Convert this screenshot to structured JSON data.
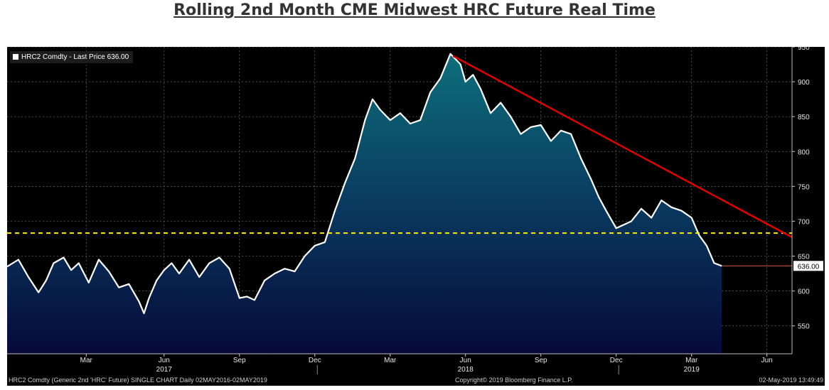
{
  "title": "Rolling 2nd Month CME Midwest HRC Future Real Time",
  "chart_data": {
    "type": "area",
    "title": "Rolling 2nd Month CME Midwest HRC Future Real Time",
    "legend": "HRC2 Comdty - Last Price 636.00",
    "legend_position": "top-left",
    "ylim": [
      510,
      950
    ],
    "y_ticks": [
      550,
      600,
      650,
      700,
      750,
      800,
      850,
      900,
      950
    ],
    "last_value_label": "636.00",
    "last_value": 636,
    "month_ticks": [
      {
        "label": "Mar",
        "t": 2.9
      },
      {
        "label": "Jun",
        "t": 6.0
      },
      {
        "label": "Sep",
        "t": 9.0
      },
      {
        "label": "Dec",
        "t": 12.0
      },
      {
        "label": "Mar",
        "t": 15.0
      },
      {
        "label": "Jun",
        "t": 18.0
      },
      {
        "label": "Sep",
        "t": 21.0
      },
      {
        "label": "Dec",
        "t": 24.0
      },
      {
        "label": "Mar",
        "t": 27.0
      },
      {
        "label": "Jun",
        "t": 30.0
      }
    ],
    "year_labels": [
      {
        "label": "2017",
        "t": 6.0
      },
      {
        "label": "2018",
        "t": 18.0
      },
      {
        "label": "2019",
        "t": 27.0
      }
    ],
    "year_separators": [
      12.1,
      24.1
    ],
    "x_range": [
      -0.25,
      31.0
    ],
    "series": [
      {
        "name": "HRC2 Comdty - Last Price",
        "t": [
          -0.25,
          0.2,
          0.6,
          1.0,
          1.3,
          1.6,
          2.0,
          2.3,
          2.6,
          3.0,
          3.4,
          3.8,
          4.2,
          4.6,
          5.0,
          5.2,
          5.4,
          5.7,
          6.0,
          6.3,
          6.6,
          7.0,
          7.4,
          7.8,
          8.2,
          8.6,
          9.0,
          9.3,
          9.6,
          10.0,
          10.4,
          10.8,
          11.2,
          11.6,
          12.0,
          12.4,
          12.8,
          13.2,
          13.6,
          14.0,
          14.3,
          14.6,
          15.0,
          15.4,
          15.8,
          16.2,
          16.6,
          17.0,
          17.4,
          17.8,
          18.0,
          18.3,
          18.6,
          19.0,
          19.4,
          19.8,
          20.2,
          20.6,
          21.0,
          21.4,
          21.8,
          22.2,
          22.6,
          23.0,
          23.3,
          23.6,
          24.0,
          24.3,
          24.6,
          25.0,
          25.4,
          25.8,
          26.2,
          26.6,
          27.0,
          27.3,
          27.6,
          27.9,
          28.2
        ],
        "values": [
          635,
          645,
          620,
          598,
          615,
          640,
          648,
          630,
          640,
          612,
          645,
          628,
          605,
          610,
          585,
          568,
          590,
          615,
          630,
          640,
          625,
          645,
          620,
          640,
          648,
          632,
          590,
          592,
          587,
          615,
          625,
          632,
          628,
          650,
          665,
          670,
          715,
          755,
          790,
          845,
          875,
          860,
          845,
          855,
          840,
          845,
          885,
          905,
          940,
          925,
          900,
          910,
          890,
          855,
          870,
          850,
          825,
          835,
          838,
          815,
          830,
          825,
          790,
          760,
          735,
          715,
          690,
          695,
          700,
          718,
          705,
          730,
          720,
          715,
          705,
          680,
          665,
          640,
          636
        ]
      }
    ],
    "trendline": {
      "from": [
        17.5,
        937
      ],
      "to": [
        31.0,
        677
      ],
      "color": "#e00000"
    },
    "horizontal_line": {
      "value": 683,
      "color": "#ffee00",
      "style": "dashed"
    }
  },
  "footer": {
    "left": "HRC2 Comdty  (Generic 2nd 'HRC' Future)  SINGLE CHART  Daily 02MAY2016-02MAY2019",
    "center": "Copyright© 2019 Bloomberg Finance L.P.",
    "right": "02-May-2019  13:49:49"
  }
}
